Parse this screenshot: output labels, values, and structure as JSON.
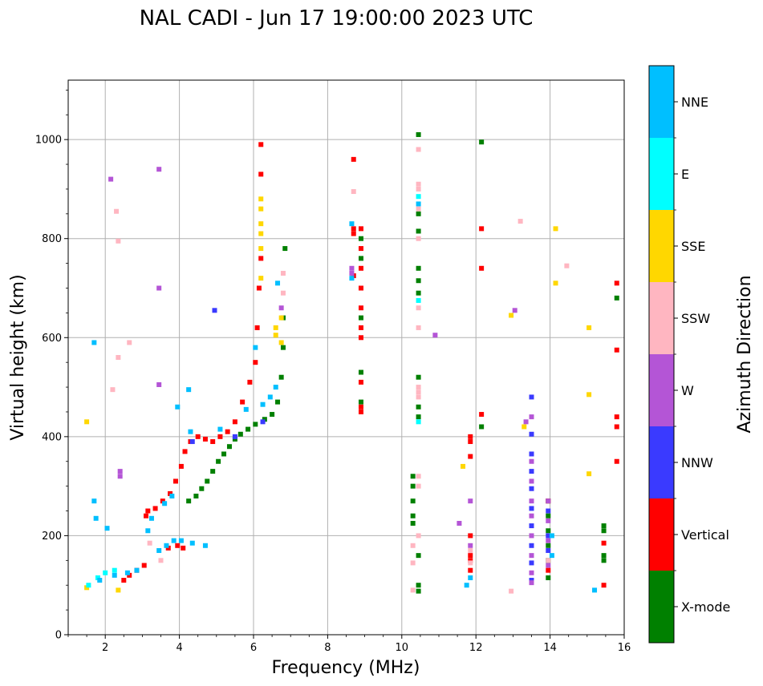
{
  "chart_data": {
    "type": "scatter",
    "title": "NAL CADI - Jun 17 19:00:00 2023 UTC",
    "xlabel": "Frequency (MHz)",
    "ylabel": "Virtual height (km)",
    "xlim": [
      1,
      16
    ],
    "ylim": [
      0,
      1120
    ],
    "xticks": [
      2,
      4,
      6,
      8,
      10,
      12,
      14,
      16
    ],
    "yticks": [
      0,
      200,
      400,
      600,
      800,
      1000
    ],
    "xtick_labels": [
      "2",
      "4",
      "6",
      "8",
      "10",
      "12",
      "14",
      "16"
    ],
    "ytick_labels": [
      "0",
      "200",
      "400",
      "600",
      "800",
      "1000"
    ],
    "grid": true,
    "colorbar": {
      "title": "Azimuth Direction",
      "categories": [
        {
          "label": "X-mode",
          "color": "#008000"
        },
        {
          "label": "Vertical",
          "color": "#ff0000"
        },
        {
          "label": "NNW",
          "color": "#3a3aff"
        },
        {
          "label": "W",
          "color": "#b455d6"
        },
        {
          "label": "SSW",
          "color": "#ffb6c1"
        },
        {
          "label": "SSE",
          "color": "#ffd700"
        },
        {
          "label": "E",
          "color": "#00ffff"
        },
        {
          "label": "NNE",
          "color": "#00bfff"
        }
      ]
    },
    "series": [
      {
        "name": "X-mode",
        "color": "#008000",
        "points": [
          [
            4.25,
            270
          ],
          [
            4.45,
            280
          ],
          [
            4.6,
            295
          ],
          [
            4.75,
            310
          ],
          [
            4.9,
            330
          ],
          [
            5.05,
            350
          ],
          [
            5.2,
            365
          ],
          [
            5.35,
            380
          ],
          [
            5.5,
            395
          ],
          [
            5.65,
            405
          ],
          [
            5.85,
            415
          ],
          [
            6.05,
            425
          ],
          [
            6.3,
            435
          ],
          [
            6.5,
            445
          ],
          [
            6.65,
            470
          ],
          [
            6.75,
            520
          ],
          [
            6.8,
            580
          ],
          [
            6.8,
            640
          ],
          [
            6.85,
            780
          ],
          [
            8.9,
            800
          ],
          [
            8.9,
            760
          ],
          [
            8.9,
            700
          ],
          [
            8.9,
            640
          ],
          [
            8.9,
            530
          ],
          [
            8.9,
            470
          ],
          [
            10.3,
            320
          ],
          [
            10.3,
            300
          ],
          [
            10.3,
            270
          ],
          [
            10.3,
            240
          ],
          [
            10.3,
            225
          ],
          [
            10.45,
            160
          ],
          [
            10.45,
            100
          ],
          [
            10.45,
            88
          ],
          [
            10.45,
            1010
          ],
          [
            10.45,
            850
          ],
          [
            10.45,
            815
          ],
          [
            10.45,
            740
          ],
          [
            10.45,
            715
          ],
          [
            10.45,
            690
          ],
          [
            10.45,
            520
          ],
          [
            10.45,
            460
          ],
          [
            10.45,
            440
          ],
          [
            12.15,
            995
          ],
          [
            12.15,
            420
          ],
          [
            13.95,
            270
          ],
          [
            13.95,
            240
          ],
          [
            13.95,
            210
          ],
          [
            13.95,
            180
          ],
          [
            13.95,
            150
          ],
          [
            13.95,
            115
          ],
          [
            15.45,
            220
          ],
          [
            15.45,
            210
          ],
          [
            15.45,
            160
          ],
          [
            15.45,
            150
          ],
          [
            15.8,
            680
          ]
        ]
      },
      {
        "name": "Vertical",
        "color": "#ff0000",
        "points": [
          [
            2.5,
            110
          ],
          [
            2.65,
            120
          ],
          [
            2.85,
            130
          ],
          [
            3.05,
            140
          ],
          [
            3.1,
            240
          ],
          [
            3.15,
            250
          ],
          [
            3.35,
            255
          ],
          [
            3.55,
            270
          ],
          [
            3.75,
            285
          ],
          [
            3.9,
            310
          ],
          [
            4.05,
            340
          ],
          [
            4.15,
            370
          ],
          [
            4.3,
            390
          ],
          [
            4.5,
            400
          ],
          [
            4.7,
            395
          ],
          [
            4.9,
            390
          ],
          [
            5.1,
            400
          ],
          [
            5.3,
            410
          ],
          [
            5.5,
            430
          ],
          [
            5.7,
            470
          ],
          [
            5.9,
            510
          ],
          [
            6.05,
            550
          ],
          [
            6.1,
            620
          ],
          [
            6.15,
            700
          ],
          [
            6.2,
            760
          ],
          [
            6.2,
            930
          ],
          [
            6.2,
            990
          ],
          [
            3.7,
            175
          ],
          [
            3.95,
            180
          ],
          [
            4.1,
            175
          ],
          [
            8.7,
            960
          ],
          [
            8.7,
            820
          ],
          [
            8.7,
            810
          ],
          [
            8.7,
            725
          ],
          [
            8.9,
            820
          ],
          [
            8.9,
            780
          ],
          [
            8.9,
            740
          ],
          [
            8.9,
            700
          ],
          [
            8.9,
            660
          ],
          [
            8.9,
            620
          ],
          [
            8.9,
            600
          ],
          [
            8.9,
            510
          ],
          [
            8.9,
            460
          ],
          [
            8.9,
            450
          ],
          [
            11.85,
            400
          ],
          [
            11.85,
            390
          ],
          [
            11.85,
            360
          ],
          [
            11.85,
            200
          ],
          [
            11.85,
            160
          ],
          [
            11.85,
            150
          ],
          [
            11.85,
            130
          ],
          [
            12.15,
            820
          ],
          [
            12.15,
            740
          ],
          [
            12.15,
            445
          ],
          [
            13.95,
            270
          ],
          [
            13.95,
            130
          ],
          [
            15.45,
            185
          ],
          [
            15.45,
            100
          ],
          [
            15.8,
            710
          ],
          [
            15.8,
            575
          ],
          [
            15.8,
            440
          ],
          [
            15.8,
            420
          ],
          [
            15.8,
            350
          ]
        ]
      },
      {
        "name": "NNW",
        "color": "#3a3aff",
        "points": [
          [
            4.35,
            390
          ],
          [
            4.95,
            655
          ],
          [
            5.5,
            400
          ],
          [
            6.25,
            430
          ],
          [
            13.5,
            480
          ],
          [
            13.5,
            405
          ],
          [
            13.5,
            365
          ],
          [
            13.5,
            330
          ],
          [
            13.5,
            295
          ],
          [
            13.5,
            255
          ],
          [
            13.5,
            220
          ],
          [
            13.5,
            180
          ],
          [
            13.5,
            145
          ],
          [
            13.5,
            110
          ],
          [
            13.95,
            250
          ],
          [
            13.95,
            200
          ],
          [
            13.95,
            170
          ]
        ]
      },
      {
        "name": "W",
        "color": "#b455d6",
        "points": [
          [
            2.15,
            920
          ],
          [
            3.45,
            940
          ],
          [
            3.45,
            700
          ],
          [
            3.45,
            505
          ],
          [
            2.4,
            330
          ],
          [
            2.4,
            320
          ],
          [
            6.75,
            660
          ],
          [
            8.65,
            740
          ],
          [
            8.65,
            730
          ],
          [
            10.9,
            605
          ],
          [
            11.85,
            270
          ],
          [
            11.85,
            180
          ],
          [
            11.55,
            225
          ],
          [
            13.05,
            655
          ],
          [
            13.35,
            430
          ],
          [
            13.5,
            440
          ],
          [
            13.5,
            350
          ],
          [
            13.5,
            310
          ],
          [
            13.5,
            270
          ],
          [
            13.5,
            240
          ],
          [
            13.5,
            200
          ],
          [
            13.5,
            160
          ],
          [
            13.5,
            125
          ],
          [
            13.5,
            105
          ],
          [
            13.95,
            270
          ],
          [
            13.95,
            230
          ],
          [
            13.95,
            190
          ],
          [
            13.95,
            140
          ]
        ]
      },
      {
        "name": "SSW",
        "color": "#ffb6c1",
        "points": [
          [
            2.35,
            795
          ],
          [
            2.35,
            560
          ],
          [
            2.65,
            590
          ],
          [
            2.3,
            855
          ],
          [
            2.2,
            495
          ],
          [
            3.2,
            185
          ],
          [
            3.5,
            150
          ],
          [
            6.8,
            730
          ],
          [
            6.8,
            690
          ],
          [
            8.7,
            895
          ],
          [
            10.45,
            980
          ],
          [
            10.45,
            910
          ],
          [
            10.45,
            900
          ],
          [
            10.45,
            860
          ],
          [
            10.45,
            800
          ],
          [
            10.45,
            660
          ],
          [
            10.45,
            620
          ],
          [
            10.45,
            500
          ],
          [
            10.45,
            490
          ],
          [
            10.45,
            480
          ],
          [
            10.45,
            320
          ],
          [
            10.45,
            300
          ],
          [
            10.45,
            200
          ],
          [
            10.3,
            180
          ],
          [
            10.3,
            145
          ],
          [
            10.3,
            90
          ],
          [
            11.85,
            170
          ],
          [
            11.85,
            145
          ],
          [
            12.95,
            88
          ],
          [
            13.2,
            835
          ],
          [
            14.45,
            745
          ],
          [
            13.95,
            150
          ]
        ]
      },
      {
        "name": "SSE",
        "color": "#ffd700",
        "points": [
          [
            1.5,
            430
          ],
          [
            1.5,
            95
          ],
          [
            2.35,
            90
          ],
          [
            6.2,
            880
          ],
          [
            6.2,
            860
          ],
          [
            6.2,
            830
          ],
          [
            6.2,
            810
          ],
          [
            6.2,
            780
          ],
          [
            6.2,
            720
          ],
          [
            6.6,
            620
          ],
          [
            6.6,
            605
          ],
          [
            6.75,
            640
          ],
          [
            6.75,
            590
          ],
          [
            11.65,
            340
          ],
          [
            12.95,
            645
          ],
          [
            13.3,
            420
          ],
          [
            14.15,
            820
          ],
          [
            14.15,
            710
          ],
          [
            15.05,
            620
          ],
          [
            15.05,
            485
          ],
          [
            15.05,
            325
          ]
        ]
      },
      {
        "name": "E",
        "color": "#00ffff",
        "points": [
          [
            1.55,
            100
          ],
          [
            1.8,
            115
          ],
          [
            2.0,
            125
          ],
          [
            2.25,
            130
          ],
          [
            10.45,
            885
          ],
          [
            10.45,
            675
          ],
          [
            10.45,
            430
          ]
        ]
      },
      {
        "name": "NNE",
        "color": "#00bfff",
        "points": [
          [
            1.7,
            590
          ],
          [
            1.7,
            270
          ],
          [
            1.75,
            235
          ],
          [
            2.05,
            215
          ],
          [
            1.85,
            110
          ],
          [
            2.25,
            120
          ],
          [
            2.6,
            125
          ],
          [
            2.85,
            130
          ],
          [
            3.15,
            210
          ],
          [
            3.25,
            235
          ],
          [
            3.45,
            170
          ],
          [
            3.65,
            180
          ],
          [
            3.85,
            190
          ],
          [
            4.05,
            190
          ],
          [
            4.35,
            185
          ],
          [
            4.7,
            180
          ],
          [
            3.6,
            265
          ],
          [
            3.8,
            280
          ],
          [
            3.95,
            460
          ],
          [
            4.25,
            495
          ],
          [
            4.3,
            410
          ],
          [
            5.1,
            415
          ],
          [
            5.8,
            455
          ],
          [
            6.05,
            580
          ],
          [
            6.25,
            465
          ],
          [
            6.45,
            480
          ],
          [
            6.6,
            500
          ],
          [
            6.65,
            710
          ],
          [
            8.65,
            830
          ],
          [
            8.65,
            720
          ],
          [
            10.45,
            870
          ],
          [
            11.75,
            100
          ],
          [
            11.85,
            115
          ],
          [
            14.05,
            200
          ],
          [
            14.05,
            160
          ],
          [
            15.2,
            90
          ]
        ]
      }
    ]
  }
}
